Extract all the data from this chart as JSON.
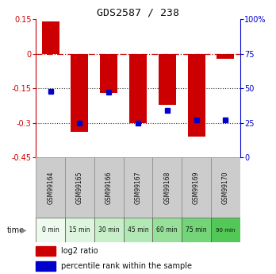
{
  "title": "GDS2587 / 238",
  "samples": [
    "GSM99164",
    "GSM99165",
    "GSM99166",
    "GSM99167",
    "GSM99168",
    "GSM99169",
    "GSM99170"
  ],
  "time_labels": [
    "0 min",
    "15 min",
    "30 min",
    "45 min",
    "60 min",
    "75 min",
    "90 min"
  ],
  "time_colors": [
    "#edfaed",
    "#ddf5dd",
    "#c8efca",
    "#b2e8b4",
    "#96e09a",
    "#74d478",
    "#52c857"
  ],
  "log2_values": [
    0.14,
    -0.34,
    -0.17,
    -0.3,
    -0.22,
    -0.36,
    -0.02
  ],
  "percentile_values": [
    48,
    25,
    47,
    25,
    34,
    27,
    27
  ],
  "ylim_left": [
    -0.45,
    0.15
  ],
  "ylim_right": [
    0,
    100
  ],
  "yticks_left": [
    0.15,
    0.0,
    -0.15,
    -0.3,
    -0.45
  ],
  "yticks_right": [
    100,
    75,
    50,
    25,
    0
  ],
  "bar_color": "#cc0000",
  "dot_color": "#0000cc",
  "hline_color_dash": "#cc0000",
  "hline_color_dot": "#333333",
  "bg_color": "#ffffff",
  "sample_bg": "#cccccc",
  "legend_bar_label": "log2 ratio",
  "legend_dot_label": "percentile rank within the sample"
}
